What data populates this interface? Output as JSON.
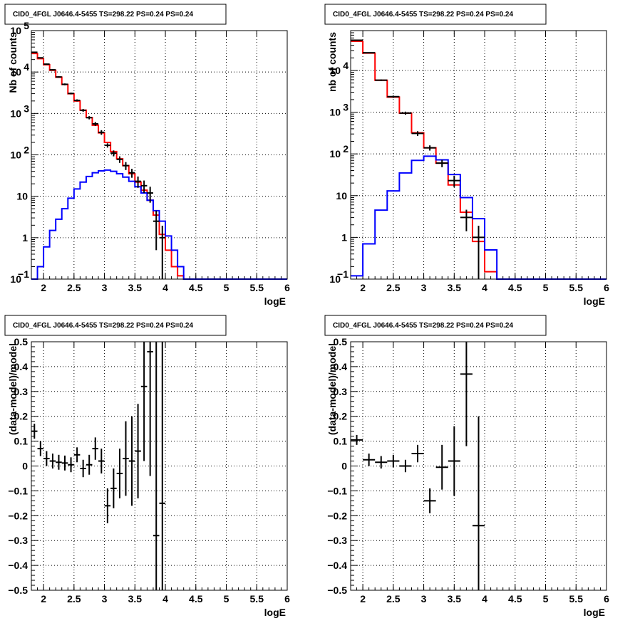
{
  "chart_data": [
    {
      "type": "histogram",
      "title": "CID0_4FGL J0646.4-5455 TS=298.22 PS=0.24 PS=0.24",
      "xlabel": "logE",
      "ylabel": "Nb of counts",
      "xlim": [
        1.8,
        6.0
      ],
      "ylim": [
        0.1,
        100000
      ],
      "yscale": "log",
      "grid": true,
      "xticks": [
        "2",
        "2.5",
        "3",
        "3.5",
        "4",
        "4.5",
        "5",
        "5.5",
        "6"
      ],
      "yticks": [
        {
          "v": 0.1,
          "base": "10",
          "exp": "−1"
        },
        {
          "v": 1,
          "label": "1"
        },
        {
          "v": 10,
          "label": "10"
        },
        {
          "v": 100,
          "base": "10",
          "exp": "2"
        },
        {
          "v": 1000,
          "base": "10",
          "exp": "3"
        },
        {
          "v": 10000,
          "base": "10",
          "exp": "4"
        },
        {
          "v": 100000,
          "base": "10",
          "exp": "5"
        }
      ],
      "bin_edges": [
        1.8,
        1.9,
        2.0,
        2.1,
        2.2,
        2.3,
        2.4,
        2.5,
        2.6,
        2.7,
        2.8,
        2.9,
        3.0,
        3.1,
        3.2,
        3.3,
        3.4,
        3.5,
        3.6,
        3.7,
        3.8,
        3.9,
        4.0,
        4.1,
        4.2,
        4.3,
        4.4,
        4.5,
        4.6,
        4.7,
        4.8,
        4.9,
        5.0,
        5.1,
        5.2,
        5.3,
        5.4,
        5.5,
        5.6,
        5.7,
        5.8,
        5.9,
        6.0
      ],
      "series": [
        {
          "color": "#ff0000",
          "values": [
            28000,
            21000,
            15000,
            11000,
            7500,
            5000,
            3000,
            2000,
            1200,
            800,
            520,
            340,
            200,
            120,
            80,
            55,
            35,
            22,
            14,
            8,
            3.5,
            1.2,
            0.5,
            0.2,
            0.12,
            0.1,
            0.1,
            0.1,
            0.1,
            0.1,
            0.1,
            0.1,
            0.1,
            0.1,
            0.1,
            0.1,
            0.1,
            0.1,
            0.1,
            0.1,
            0.1,
            0.1
          ]
        },
        {
          "color": "#0000ff",
          "values": [
            0.07,
            0.2,
            0.6,
            1.5,
            2.8,
            5,
            9,
            15,
            22,
            30,
            37,
            41,
            43,
            40,
            35,
            29,
            23,
            17,
            12,
            8,
            4.5,
            2.5,
            1.1,
            0.5,
            0.2,
            0.1,
            0.1,
            0.1,
            0.1,
            0.1,
            0.1,
            0.1,
            0.1,
            0.1,
            0.1,
            0.1,
            0.1,
            0.1,
            0.1,
            0.1,
            0.1,
            0.1
          ]
        }
      ],
      "points": [
        {
          "x": 1.85,
          "y": 30000,
          "e": 800
        },
        {
          "x": 1.95,
          "y": 22000,
          "e": 600
        },
        {
          "x": 2.05,
          "y": 15500,
          "e": 500
        },
        {
          "x": 2.15,
          "y": 11300,
          "e": 400
        },
        {
          "x": 2.25,
          "y": 7600,
          "e": 300
        },
        {
          "x": 2.35,
          "y": 5050,
          "e": 250
        },
        {
          "x": 2.45,
          "y": 3040,
          "e": 150
        },
        {
          "x": 2.55,
          "y": 2070,
          "e": 120
        },
        {
          "x": 2.65,
          "y": 1190,
          "e": 90
        },
        {
          "x": 2.75,
          "y": 790,
          "e": 70
        },
        {
          "x": 2.85,
          "y": 560,
          "e": 60
        },
        {
          "x": 2.95,
          "y": 350,
          "e": 45
        },
        {
          "x": 3.05,
          "y": 170,
          "e": 20
        },
        {
          "x": 3.15,
          "y": 110,
          "e": 18
        },
        {
          "x": 3.25,
          "y": 78,
          "e": 14
        },
        {
          "x": 3.35,
          "y": 55,
          "e": 12
        },
        {
          "x": 3.45,
          "y": 37,
          "e": 9
        },
        {
          "x": 3.55,
          "y": 23,
          "e": 7
        },
        {
          "x": 3.65,
          "y": 18,
          "e": 6
        },
        {
          "x": 3.75,
          "y": 12,
          "e": 5
        },
        {
          "x": 3.85,
          "y": 2.5,
          "e": 2
        },
        {
          "x": 3.95,
          "y": 1.0,
          "e": 0.95
        }
      ]
    },
    {
      "type": "histogram",
      "title": "CID0_4FGL J0646.4-5455 TS=298.22 PS=0.24 PS=0.24",
      "xlabel": "logE",
      "ylabel": "nb of counts",
      "xlim": [
        1.8,
        6.0
      ],
      "ylim": [
        0.1,
        90000
      ],
      "yscale": "log",
      "grid": true,
      "xticks": [
        "2",
        "2.5",
        "3",
        "3.5",
        "4",
        "4.5",
        "5",
        "5.5",
        "6"
      ],
      "yticks": [
        {
          "v": 0.1,
          "base": "10",
          "exp": "−1"
        },
        {
          "v": 1,
          "label": "1"
        },
        {
          "v": 10,
          "label": "10"
        },
        {
          "v": 100,
          "base": "10",
          "exp": "2"
        },
        {
          "v": 1000,
          "base": "10",
          "exp": "3"
        },
        {
          "v": 10000,
          "base": "10",
          "exp": "4"
        }
      ],
      "bin_edges": [
        1.8,
        2.0,
        2.2,
        2.4,
        2.6,
        2.8,
        3.0,
        3.2,
        3.4,
        3.6,
        3.8,
        4.0,
        4.2,
        4.4,
        4.6,
        4.8,
        5.0,
        5.2,
        5.4,
        5.6,
        5.8,
        6.0
      ],
      "series": [
        {
          "color": "#ff0000",
          "values": [
            50000,
            26000,
            5800,
            2300,
            950,
            320,
            140,
            60,
            18,
            4,
            0.8,
            0.15,
            0.1,
            0.1,
            0.1,
            0.1,
            0.1,
            0.1,
            0.1,
            0.1,
            0.1
          ]
        },
        {
          "color": "#0000ff",
          "values": [
            0.12,
            0.7,
            4.5,
            13,
            35,
            70,
            88,
            72,
            32,
            9,
            2.8,
            0.5,
            0.1,
            0.1,
            0.1,
            0.1,
            0.1,
            0.1,
            0.1,
            0.1,
            0.1
          ]
        }
      ],
      "points": [
        {
          "x": 1.9,
          "y": 53000,
          "e": 1500
        },
        {
          "x": 2.1,
          "y": 26500,
          "e": 700
        },
        {
          "x": 2.3,
          "y": 5850,
          "e": 250
        },
        {
          "x": 2.5,
          "y": 2350,
          "e": 150
        },
        {
          "x": 2.7,
          "y": 950,
          "e": 80
        },
        {
          "x": 2.9,
          "y": 310,
          "e": 40
        },
        {
          "x": 3.1,
          "y": 140,
          "e": 20
        },
        {
          "x": 3.3,
          "y": 60,
          "e": 12
        },
        {
          "x": 3.5,
          "y": 23,
          "e": 7
        },
        {
          "x": 3.7,
          "y": 3.0,
          "e": 1.6
        },
        {
          "x": 3.9,
          "y": 1.0,
          "e": 0.9
        }
      ]
    },
    {
      "type": "scatter",
      "title": "CID0_4FGL J0646.4-5455 TS=298.22 PS=0.24 PS=0.24",
      "xlabel": "logE",
      "ylabel": "(data-model)/model",
      "xlim": [
        1.8,
        6.0
      ],
      "ylim": [
        -0.5,
        0.5
      ],
      "grid": true,
      "xticks": [
        "2",
        "2.5",
        "3",
        "3.5",
        "4",
        "4.5",
        "5",
        "5.5",
        "6"
      ],
      "yticks": [
        "−0.5",
        "−0.4",
        "−0.3",
        "−0.2",
        "−0.1",
        "0",
        "0.1",
        "0.2",
        "0.3",
        "0.4",
        "0.5"
      ],
      "bin_width": 0.1,
      "points": [
        {
          "x": 1.85,
          "y": 0.14,
          "e": 0.03
        },
        {
          "x": 1.95,
          "y": 0.07,
          "e": 0.03
        },
        {
          "x": 2.05,
          "y": 0.03,
          "e": 0.03
        },
        {
          "x": 2.15,
          "y": 0.02,
          "e": 0.03
        },
        {
          "x": 2.25,
          "y": 0.015,
          "e": 0.03
        },
        {
          "x": 2.35,
          "y": 0.012,
          "e": 0.03
        },
        {
          "x": 2.45,
          "y": 0.005,
          "e": 0.03
        },
        {
          "x": 2.55,
          "y": 0.045,
          "e": 0.03
        },
        {
          "x": 2.65,
          "y": -0.01,
          "e": 0.035
        },
        {
          "x": 2.75,
          "y": 0.005,
          "e": 0.04
        },
        {
          "x": 2.85,
          "y": 0.07,
          "e": 0.045
        },
        {
          "x": 2.95,
          "y": 0.02,
          "e": 0.05
        },
        {
          "x": 3.05,
          "y": -0.16,
          "e": 0.07
        },
        {
          "x": 3.15,
          "y": -0.09,
          "e": 0.08
        },
        {
          "x": 3.25,
          "y": -0.03,
          "e": 0.1
        },
        {
          "x": 3.35,
          "y": 0.03,
          "e": 0.15
        },
        {
          "x": 3.45,
          "y": 0.02,
          "e": 0.18
        },
        {
          "x": 3.55,
          "y": 0.06,
          "e": 0.19
        },
        {
          "x": 3.65,
          "y": 0.32,
          "e": 0.3
        },
        {
          "x": 3.75,
          "y": 0.46,
          "e": 0.5
        },
        {
          "x": 3.85,
          "y": -0.28,
          "e": 0.8
        },
        {
          "x": 3.95,
          "y": -0.15,
          "e": 1.0
        }
      ]
    },
    {
      "type": "scatter",
      "title": "CID0_4FGL J0646.4-5455 TS=298.22 PS=0.24 PS=0.24",
      "xlabel": "logE",
      "ylabel": "(data-model)/model",
      "xlim": [
        1.8,
        6.0
      ],
      "ylim": [
        -0.5,
        0.5
      ],
      "grid": true,
      "xticks": [
        "2",
        "2.5",
        "3",
        "3.5",
        "4",
        "4.5",
        "5",
        "5.5",
        "6"
      ],
      "yticks": [
        "−0.5",
        "−0.4",
        "−0.3",
        "−0.2",
        "−0.1",
        "0",
        "0.1",
        "0.2",
        "0.3",
        "0.4",
        "0.5"
      ],
      "bin_width": 0.2,
      "points": [
        {
          "x": 1.9,
          "y": 0.105,
          "e": 0.02
        },
        {
          "x": 2.1,
          "y": 0.025,
          "e": 0.025
        },
        {
          "x": 2.3,
          "y": 0.015,
          "e": 0.025
        },
        {
          "x": 2.5,
          "y": 0.02,
          "e": 0.025
        },
        {
          "x": 2.7,
          "y": 0.0,
          "e": 0.025
        },
        {
          "x": 2.9,
          "y": 0.05,
          "e": 0.035
        },
        {
          "x": 3.1,
          "y": -0.14,
          "e": 0.05
        },
        {
          "x": 3.3,
          "y": -0.005,
          "e": 0.09
        },
        {
          "x": 3.5,
          "y": 0.02,
          "e": 0.14
        },
        {
          "x": 3.7,
          "y": 0.37,
          "e": 0.29
        },
        {
          "x": 3.9,
          "y": -0.24,
          "e": 0.44
        }
      ]
    }
  ]
}
